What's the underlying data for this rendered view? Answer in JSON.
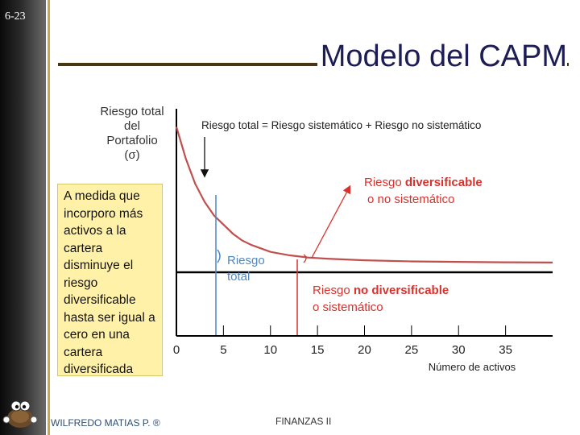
{
  "slide": {
    "number": "6-23",
    "title": "Modelo del CAPM"
  },
  "note": {
    "lines": [
      "A medida que",
      "incorporo más",
      "activos a la",
      "cartera",
      "disminuye el",
      "riesgo",
      "diversificable",
      "hasta ser igual a",
      "cero en una",
      "cartera",
      "diversificada"
    ]
  },
  "footer": {
    "author": "WILFREDO MATIAS P. ®",
    "course": "FINANZAS II"
  },
  "colors": {
    "curve": "#c0504d",
    "annotation_red": "#d9312c",
    "total_blue": "#4f86c6",
    "note_bg": "#fff2a8",
    "title": "#1d1d55"
  },
  "chart_data": {
    "type": "line",
    "ylabel_lines": [
      "Riesgo total",
      "del",
      "Portafolio",
      "(σ)"
    ],
    "xlabel": "Número de activos",
    "formula": "Riesgo total = Riesgo sistemático + Riesgo no sistemático",
    "x_ticks": [
      "0",
      "5",
      "10",
      "15",
      "20",
      "25",
      "30",
      "35"
    ],
    "xlim": [
      0,
      40
    ],
    "ylim": [
      0,
      100
    ],
    "series": [
      {
        "x": [
          0,
          1,
          2,
          3,
          4,
          5,
          6,
          7,
          8,
          10,
          12,
          14,
          16,
          20,
          25,
          30,
          35,
          40
        ],
        "y": [
          92,
          78,
          67,
          59,
          53,
          49,
          45,
          42,
          40,
          37,
          35.5,
          34.5,
          34,
          33.3,
          32.8,
          32.6,
          32.4,
          32.3
        ]
      }
    ],
    "systematic_level": 28,
    "annotations": {
      "diversifiable_prefix": "Riesgo ",
      "diversifiable_bold": "diversificable",
      "diversifiable_line2": "o no sistemático",
      "nondiversifiable_prefix": "Riesgo ",
      "nondiversifiable_bold": "no diversificable",
      "nondiversifiable_line2": "o sistemático",
      "total_line1": "Riesgo",
      "total_line2": "total"
    }
  }
}
